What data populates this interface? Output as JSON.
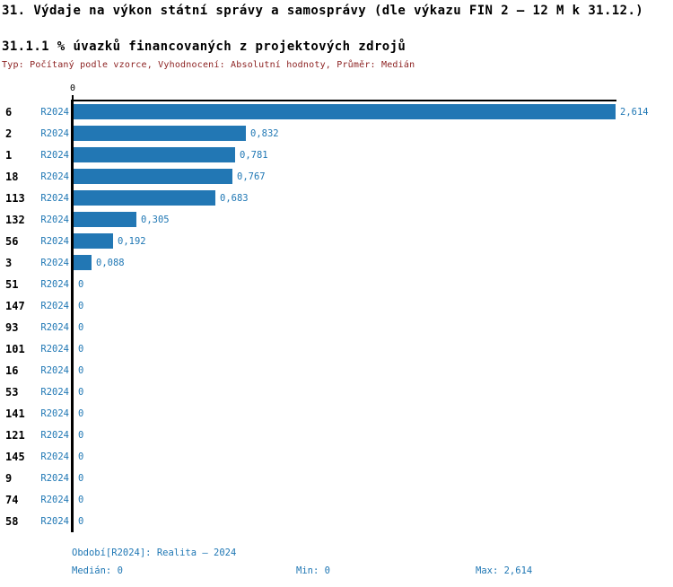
{
  "header": {
    "title": "31. Výdaje na výkon státní správy a samosprávy (dle výkazu FIN 2 – 12 M k 31.12.)",
    "subtitle": "31.1.1 % úvazků financovaných z projektových zdrojů",
    "meta": "Typ: Počítaný podle vzorce, Vyhodnocení: Absolutní hodnoty, Průměr: Medián"
  },
  "chart_data": {
    "type": "bar",
    "orientation": "horizontal",
    "title": "31.1.1 % úvazků financovaných z projektových zdrojů",
    "categories": [
      "6",
      "2",
      "1",
      "18",
      "113",
      "132",
      "56",
      "3",
      "51",
      "147",
      "93",
      "101",
      "16",
      "53",
      "141",
      "121",
      "145",
      "9",
      "74",
      "58"
    ],
    "series": [
      {
        "name": "R2024",
        "values": [
          2.614,
          0.832,
          0.781,
          0.767,
          0.683,
          0.305,
          0.192,
          0.088,
          0,
          0,
          0,
          0,
          0,
          0,
          0,
          0,
          0,
          0,
          0,
          0
        ],
        "value_labels": [
          "2,614",
          "0,832",
          "0,781",
          "0,767",
          "0,683",
          "0,305",
          "0,192",
          "0,088",
          "0",
          "0",
          "0",
          "0",
          "0",
          "0",
          "0",
          "0",
          "0",
          "0",
          "0",
          "0"
        ]
      }
    ],
    "xlim": [
      0,
      2.614
    ],
    "x_ticks": [
      "0"
    ],
    "grid": false,
    "legend_position": "none",
    "bar_color": "#2277b4",
    "label_color": "#1f77b4",
    "axis_color": "#000000"
  },
  "footer": {
    "period": "Období[R2024]: Realita – 2024",
    "median": "Medián: 0",
    "min": "Min: 0",
    "max": "Max: 2,614"
  },
  "colors": {
    "bar_blue": "#2277b4",
    "text_blue": "#1f77b4",
    "meta_dark_red": "#8b1f1f",
    "axis_black": "#000000"
  }
}
